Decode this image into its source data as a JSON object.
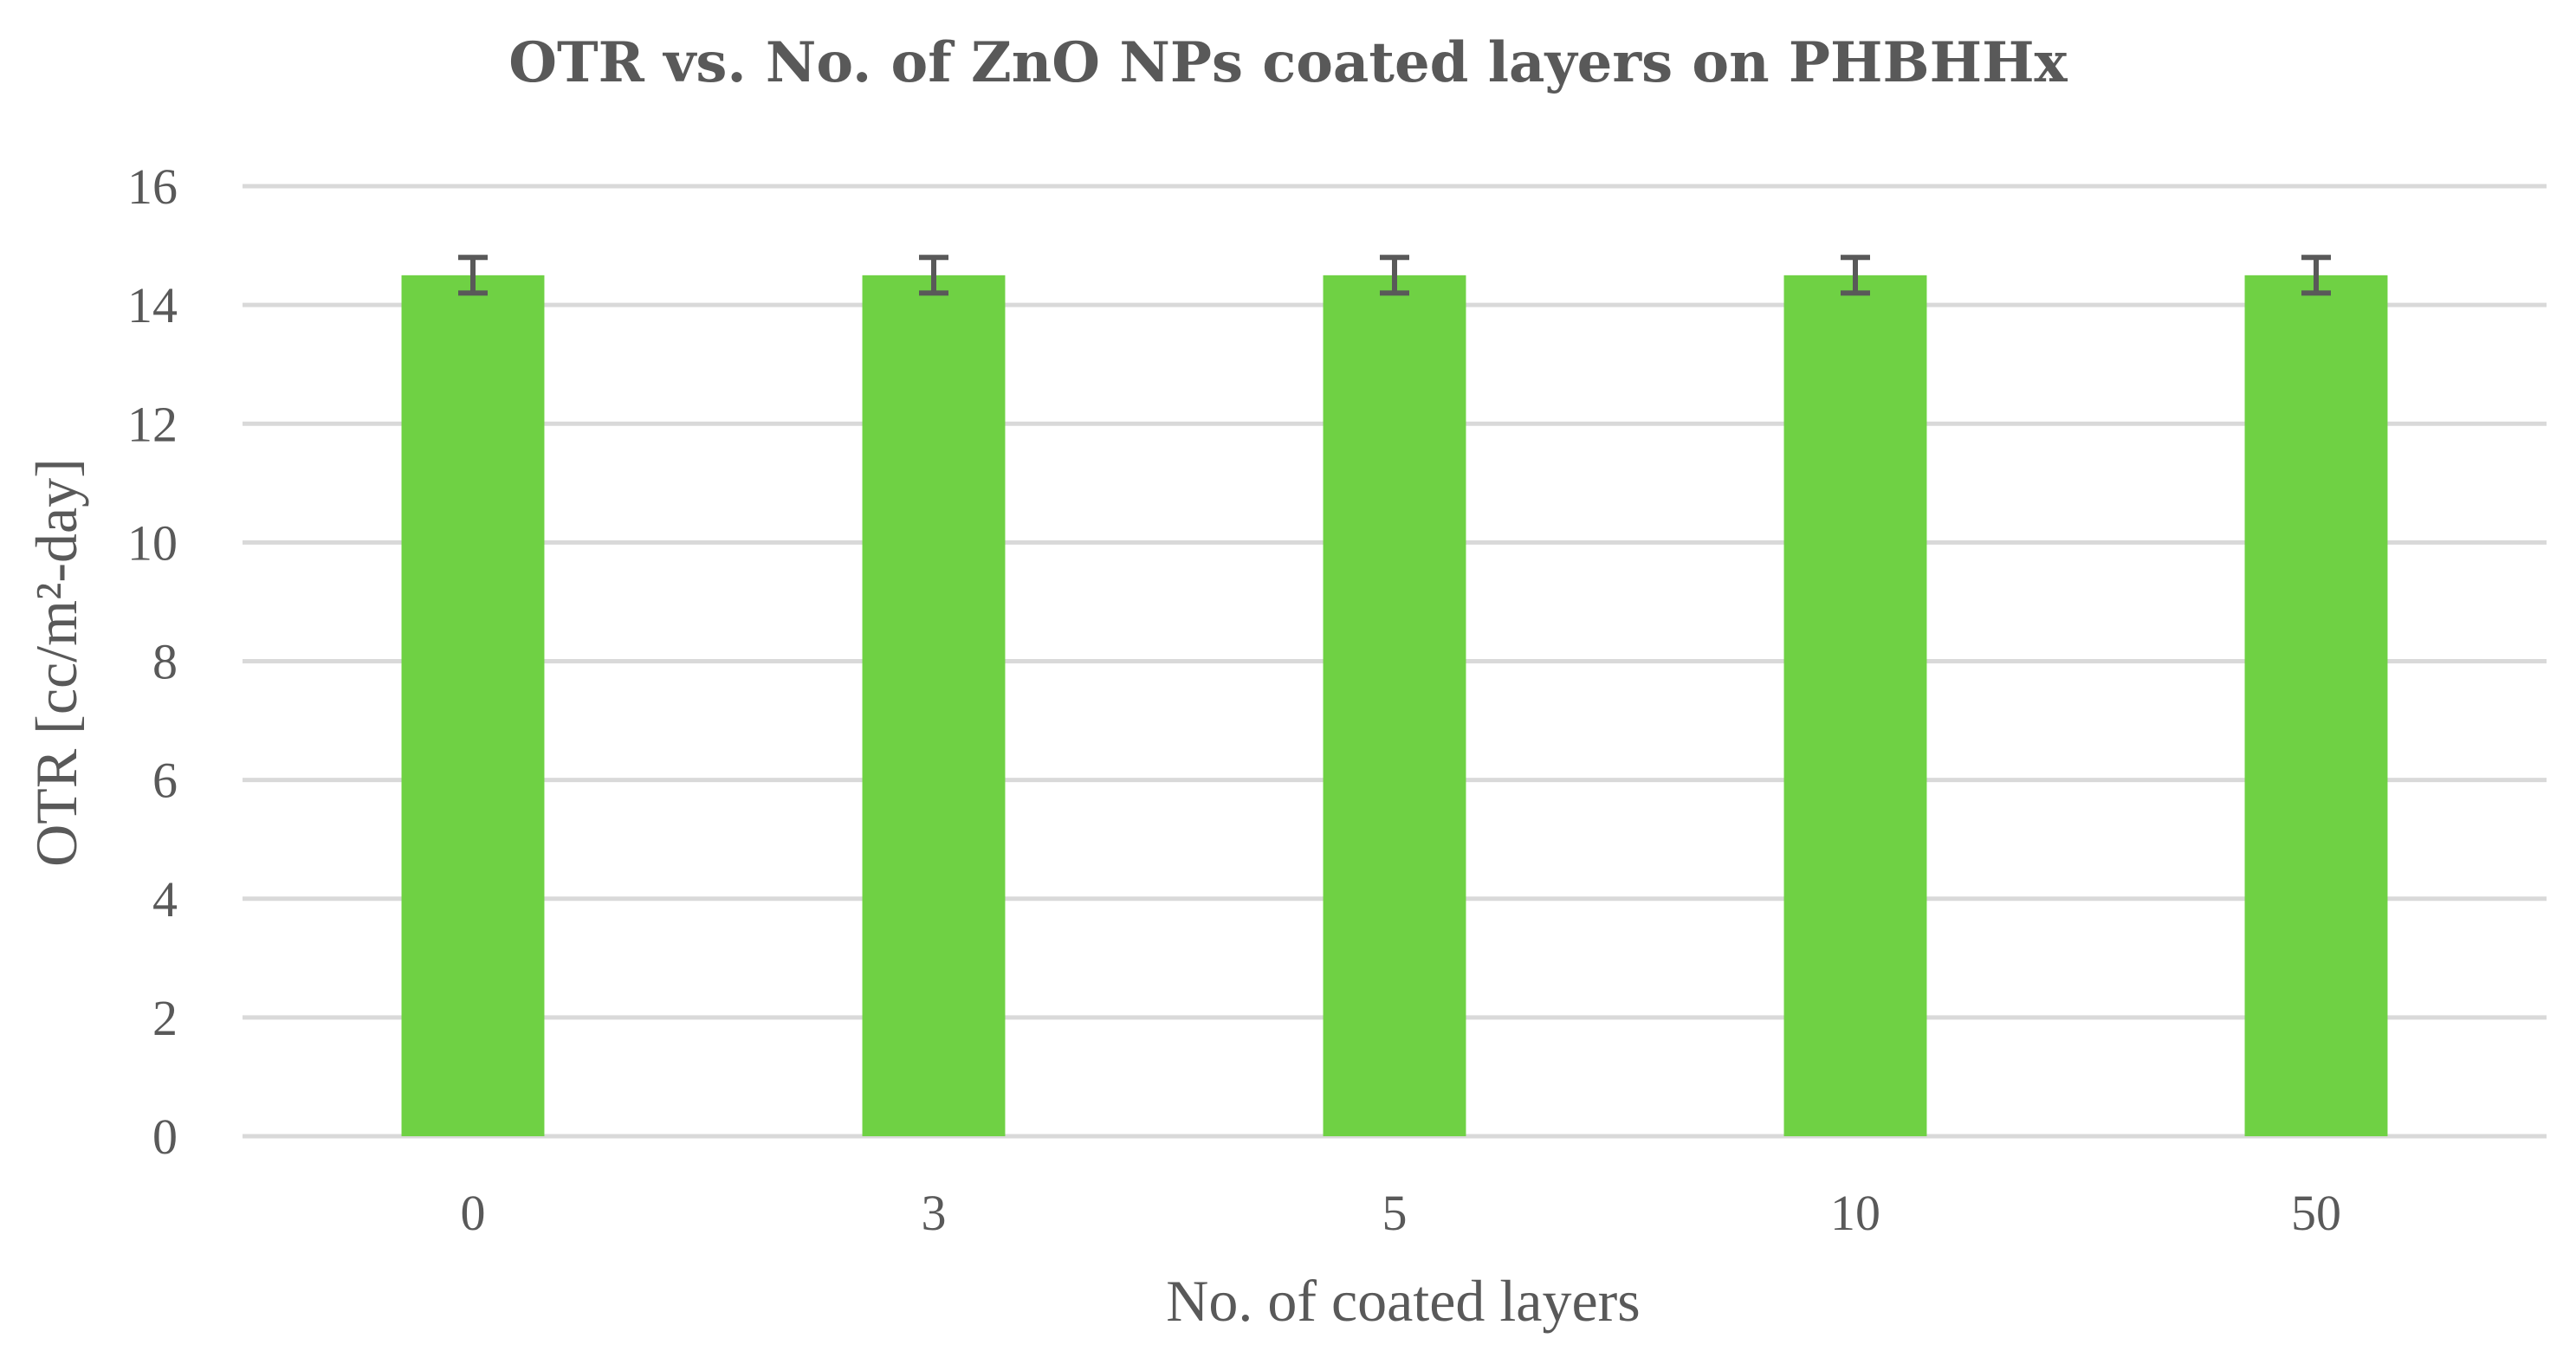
{
  "chart_data": {
    "type": "bar",
    "title": "OTR vs. No. of ZnO NPs coated layers on PHBHHx",
    "xlabel": "No. of coated layers",
    "ylabel": "OTR [cc/m²-day]",
    "categories": [
      "0",
      "3",
      "5",
      "10",
      "50"
    ],
    "series": [
      {
        "name": "OTR",
        "values": [
          14.5,
          14.5,
          14.5,
          14.5,
          14.5
        ],
        "error": [
          0.3,
          0.3,
          0.3,
          0.3,
          0.3
        ]
      }
    ],
    "ylim": [
      0,
      16
    ],
    "yticks": [
      0,
      2,
      4,
      6,
      8,
      10,
      12,
      14,
      16
    ],
    "ytick_labels": [
      "0",
      "2",
      "4",
      "6",
      "8",
      "10",
      "12",
      "14",
      "16"
    ],
    "grid": true,
    "legend": "none",
    "colors": {
      "bar": "#6fd144",
      "error_bar": "#595959",
      "grid": "#d9d9d9",
      "text": "#595959"
    }
  }
}
